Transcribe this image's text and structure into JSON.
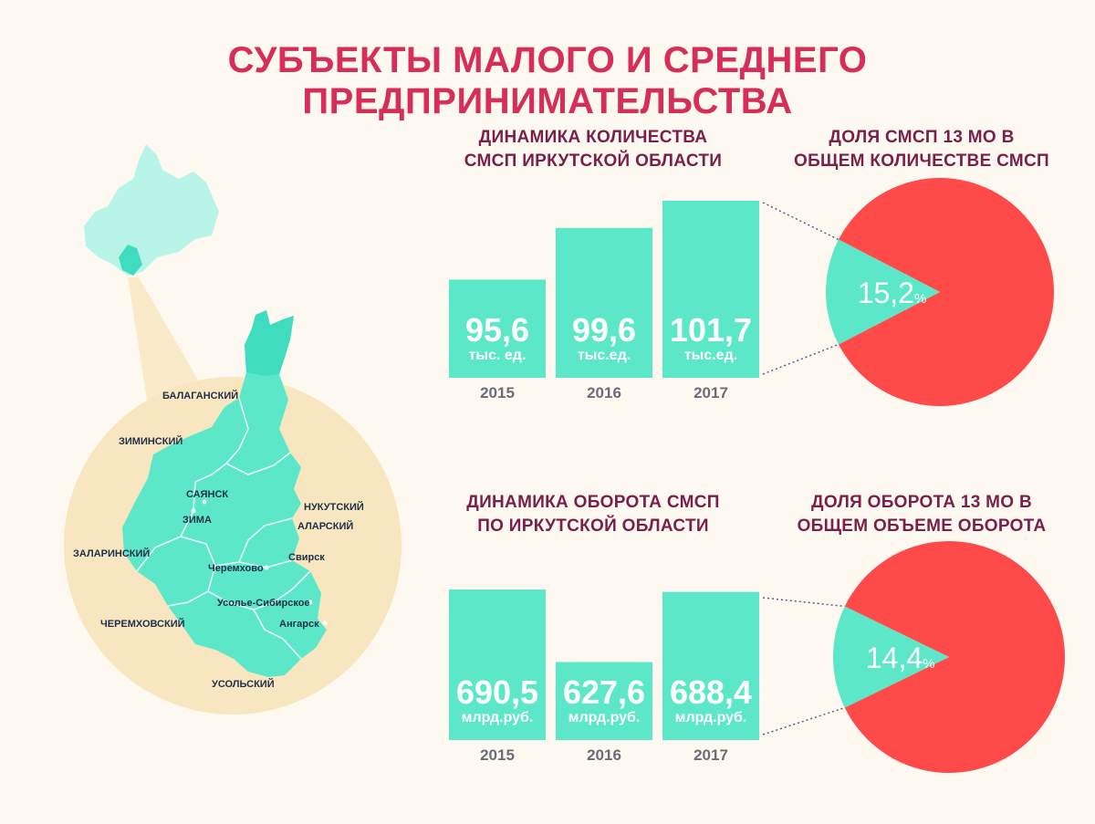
{
  "title": "СУБЪЕКТЫ МАЛОГО И СРЕДНЕГО ПРЕДПРИНИМАТЕЛЬСТВА",
  "colors": {
    "title": "#d62d5a",
    "section_title": "#7a1f4a",
    "bar": "#5ce8c8",
    "pie_main": "#ff4a4a",
    "pie_slice": "#5ce8c8",
    "map_circle": "#f7e6bf",
    "region": "#5ce8c8"
  },
  "map": {
    "labels": [
      {
        "id": "balagansky",
        "text": "БАЛАГАНСКИЙ"
      },
      {
        "id": "ziminsky",
        "text": "ЗИМИНСКИЙ"
      },
      {
        "id": "sayansk",
        "text": "САЯНСК"
      },
      {
        "id": "zima",
        "text": "ЗИМА"
      },
      {
        "id": "nukutsky",
        "text": "НУКУТСКИЙ"
      },
      {
        "id": "alarsky",
        "text": "АЛАРСКИЙ"
      },
      {
        "id": "zalarinsky",
        "text": "ЗАЛАРИНСКИЙ"
      },
      {
        "id": "svirsk",
        "text": "Свирск"
      },
      {
        "id": "cheremkhovo",
        "text": "Черемхово"
      },
      {
        "id": "usolye",
        "text": "Усолье-Сибирское"
      },
      {
        "id": "cheremkhovsky",
        "text": "ЧЕРЕМХОВСКИЙ"
      },
      {
        "id": "angarsk",
        "text": "Ангарск"
      },
      {
        "id": "usolsky",
        "text": "УСОЛЬСКИЙ"
      }
    ]
  },
  "chart_data": [
    {
      "type": "bar",
      "title_lines": [
        "ДИНАМИКА КОЛИЧЕСТВА",
        "СМСП ИРКУТСКОЙ ОБЛАСТИ"
      ],
      "categories": [
        "2015",
        "2016",
        "2017"
      ],
      "values": [
        95.6,
        99.6,
        101.7
      ],
      "value_labels": [
        "95,6",
        "99,6",
        "101,7"
      ],
      "unit_labels": [
        "тыс. ед.",
        "тыс.ед.",
        "тыс.ед."
      ]
    },
    {
      "type": "pie",
      "title_lines": [
        "ДОЛЯ СМСП 13 МО В",
        "ОБЩЕМ КОЛИЧЕСТВЕ СМСП"
      ],
      "values": [
        15.2,
        84.8
      ],
      "value_label": "15,2",
      "unit": "%"
    },
    {
      "type": "bar",
      "title_lines": [
        "ДИНАМИКА ОБОРОТА СМСП",
        "ПО ИРКУТСКОЙ ОБЛАСТИ"
      ],
      "categories": [
        "2015",
        "2016",
        "2017"
      ],
      "values": [
        690.5,
        627.6,
        688.4
      ],
      "value_labels": [
        "690,5",
        "627,6",
        "688,4"
      ],
      "unit_labels": [
        "млрд.руб.",
        "млрд.руб.",
        "млрд.руб."
      ]
    },
    {
      "type": "pie",
      "title_lines": [
        "ДОЛЯ ОБОРОТА 13 МО В",
        "ОБЩЕМ ОБЪЕМЕ ОБОРОТА"
      ],
      "values": [
        14.4,
        85.6
      ],
      "value_label": "14,4",
      "unit": "%"
    }
  ]
}
